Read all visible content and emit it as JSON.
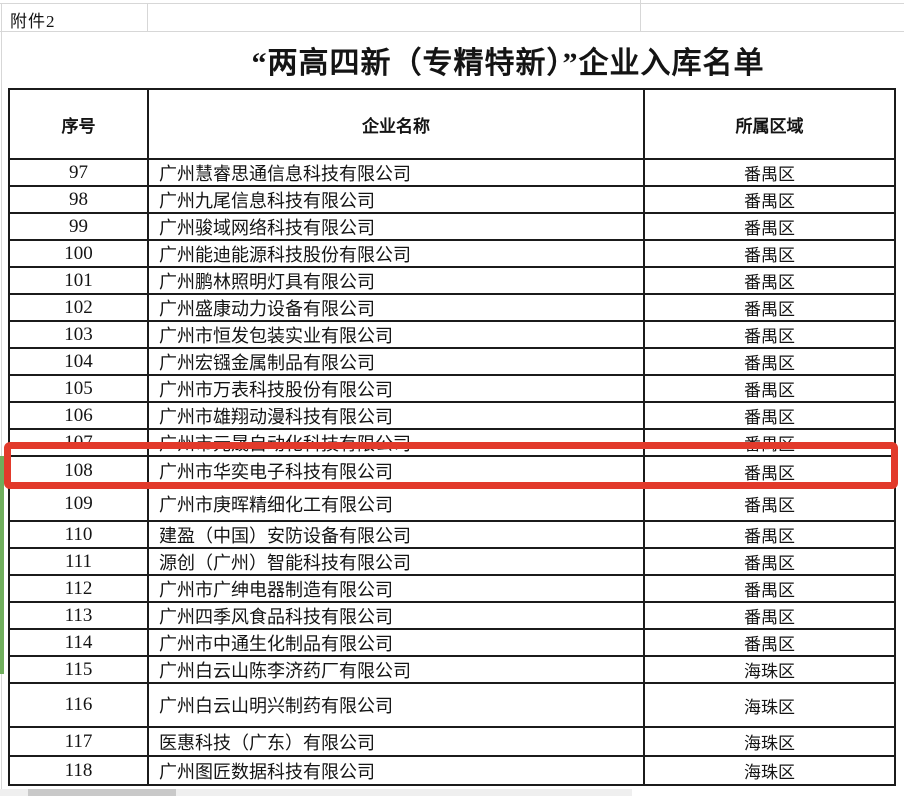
{
  "sheet": {
    "attachment_label": "附件2",
    "title": "“两高四新（专精特新）”企业入库名单"
  },
  "table": {
    "headers": [
      "序号",
      "企业名称",
      "所属区域"
    ],
    "rows": [
      {
        "no": "97",
        "company": "广州慧睿思通信息科技有限公司",
        "region": "番禺区"
      },
      {
        "no": "98",
        "company": "广州九尾信息科技有限公司",
        "region": "番禺区"
      },
      {
        "no": "99",
        "company": "广州骏域网络科技有限公司",
        "region": "番禺区"
      },
      {
        "no": "100",
        "company": "广州能迪能源科技股份有限公司",
        "region": "番禺区"
      },
      {
        "no": "101",
        "company": "广州鹏林照明灯具有限公司",
        "region": "番禺区"
      },
      {
        "no": "102",
        "company": "广州盛康动力设备有限公司",
        "region": "番禺区"
      },
      {
        "no": "103",
        "company": "广州市恒发包装实业有限公司",
        "region": "番禺区"
      },
      {
        "no": "104",
        "company": "广州宏镪金属制品有限公司",
        "region": "番禺区"
      },
      {
        "no": "105",
        "company": "广州市万表科技股份有限公司",
        "region": "番禺区"
      },
      {
        "no": "106",
        "company": "广州市雄翔动漫科技有限公司",
        "region": "番禺区"
      },
      {
        "no": "107",
        "company": "广州市元晟自动化科技有限公司",
        "region": "番禺区"
      },
      {
        "no": "108",
        "company": "广州市华奕电子科技有限公司",
        "region": "番禺区"
      },
      {
        "no": "109",
        "company": "广州市庚晖精细化工有限公司",
        "region": "番禺区"
      },
      {
        "no": "110",
        "company": "建盈（中国）安防设备有限公司",
        "region": "番禺区"
      },
      {
        "no": "111",
        "company": "源创（广州）智能科技有限公司",
        "region": "番禺区"
      },
      {
        "no": "112",
        "company": "广州市广绅电器制造有限公司",
        "region": "番禺区"
      },
      {
        "no": "113",
        "company": "广州四季风食品科技有限公司",
        "region": "番禺区"
      },
      {
        "no": "114",
        "company": "广州市中通生化制品有限公司",
        "region": "番禺区"
      },
      {
        "no": "115",
        "company": "广州白云山陈李济药厂有限公司",
        "region": "海珠区"
      },
      {
        "no": "116",
        "company": "广州白云山明兴制药有限公司",
        "region": "海珠区"
      },
      {
        "no": "117",
        "company": "医惠科技（广东）有限公司",
        "region": "海珠区"
      },
      {
        "no": "118",
        "company": "广州图匠数据科技有限公司",
        "region": "海珠区"
      }
    ]
  },
  "highlight": {
    "highlighted_row_no": "108",
    "box_color": "#e23a2b"
  },
  "colors": {
    "table_border": "#1b1b1b",
    "gridline": "#d7d7d7",
    "selection_green": "#6fae5c"
  }
}
